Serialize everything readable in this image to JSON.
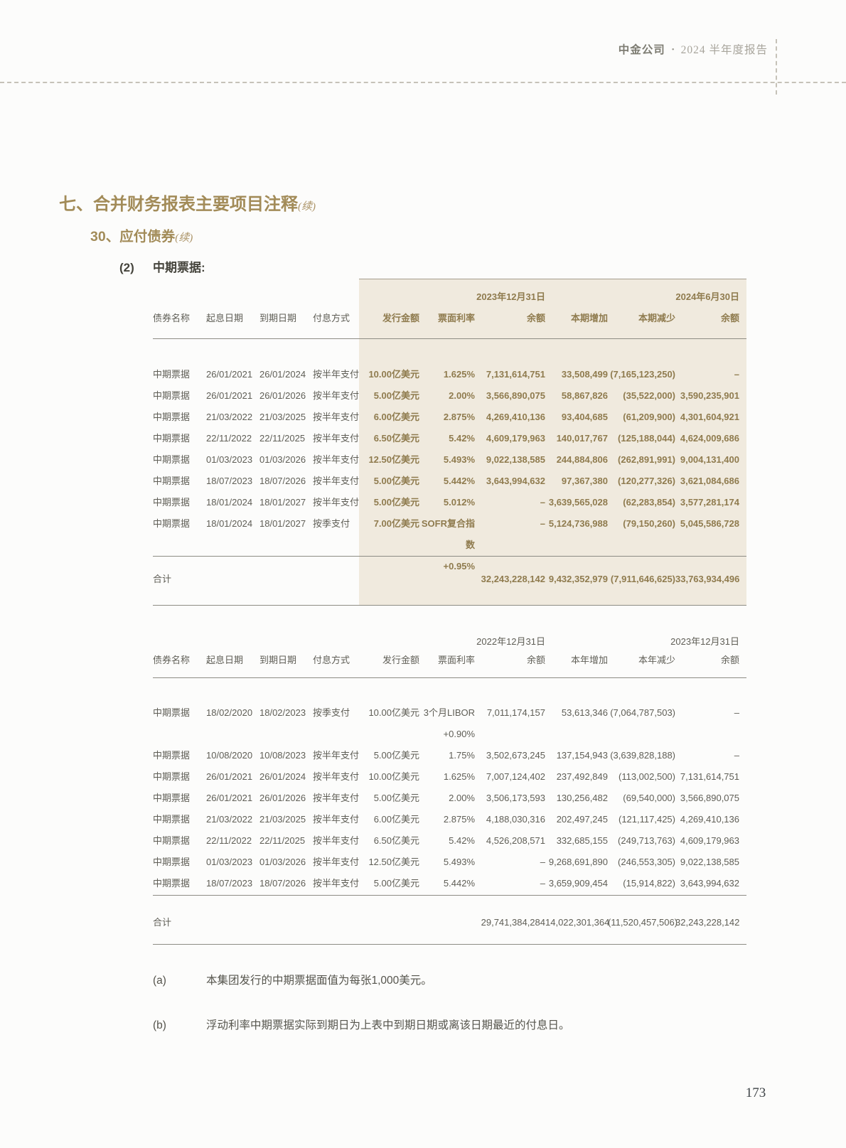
{
  "header": {
    "brand": "中金公司",
    "separator": "•",
    "report": "2024 半年度报告"
  },
  "headings": {
    "section": "七、合并财务报表主要项目注释",
    "section_suffix": "(续)",
    "subsection": "30、应付债券",
    "subsection_suffix": "(续)",
    "item_number": "(2)",
    "item_title": "中期票据:"
  },
  "table1": {
    "period_start_label": "2023年12月31日",
    "period_end_label": "2024年6月30日",
    "columns": [
      "债券名称",
      "起息日期",
      "到期日期",
      "付息方式",
      "发行金额",
      "票面利率",
      "余额",
      "本期增加",
      "本期减少",
      "余额"
    ],
    "rows": [
      [
        "中期票据",
        "26/01/2021",
        "26/01/2024",
        "按半年支付",
        "10.00亿美元",
        "1.625%",
        "7,131,614,751",
        "33,508,499",
        "(7,165,123,250)",
        "–"
      ],
      [
        "中期票据",
        "26/01/2021",
        "26/01/2026",
        "按半年支付",
        "5.00亿美元",
        "2.00%",
        "3,566,890,075",
        "58,867,826",
        "(35,522,000)",
        "3,590,235,901"
      ],
      [
        "中期票据",
        "21/03/2022",
        "21/03/2025",
        "按半年支付",
        "6.00亿美元",
        "2.875%",
        "4,269,410,136",
        "93,404,685",
        "(61,209,900)",
        "4,301,604,921"
      ],
      [
        "中期票据",
        "22/11/2022",
        "22/11/2025",
        "按半年支付",
        "6.50亿美元",
        "5.42%",
        "4,609,179,963",
        "140,017,767",
        "(125,188,044)",
        "4,624,009,686"
      ],
      [
        "中期票据",
        "01/03/2023",
        "01/03/2026",
        "按半年支付",
        "12.50亿美元",
        "5.493%",
        "9,022,138,585",
        "244,884,806",
        "(262,891,991)",
        "9,004,131,400"
      ],
      [
        "中期票据",
        "18/07/2023",
        "18/07/2026",
        "按半年支付",
        "5.00亿美元",
        "5.442%",
        "3,643,994,632",
        "97,367,380",
        "(120,277,326)",
        "3,621,084,686"
      ],
      [
        "中期票据",
        "18/01/2024",
        "18/01/2027",
        "按半年支付",
        "5.00亿美元",
        "5.012%",
        "–",
        "3,639,565,028",
        "(62,283,854)",
        "3,577,281,174"
      ],
      [
        "中期票据",
        "18/01/2024",
        "18/01/2027",
        "按季支付",
        "7.00亿美元",
        "SOFR复合指数\n+0.95%",
        "–",
        "5,124,736,988",
        "(79,150,260)",
        "5,045,586,728"
      ]
    ],
    "total_label": "合计",
    "totals": [
      "32,243,228,142",
      "9,432,352,979",
      "(7,911,646,625)",
      "33,763,934,496"
    ]
  },
  "table2": {
    "period_start_label": "2022年12月31日",
    "period_end_label": "2023年12月31日",
    "columns": [
      "债券名称",
      "起息日期",
      "到期日期",
      "付息方式",
      "发行金额",
      "票面利率",
      "余额",
      "本年增加",
      "本年减少",
      "余额"
    ],
    "rows": [
      [
        "中期票据",
        "18/02/2020",
        "18/02/2023",
        "按季支付",
        "10.00亿美元",
        "3个月LIBOR\n+0.90%",
        "7,011,174,157",
        "53,613,346",
        "(7,064,787,503)",
        "–"
      ],
      [
        "中期票据",
        "10/08/2020",
        "10/08/2023",
        "按半年支付",
        "5.00亿美元",
        "1.75%",
        "3,502,673,245",
        "137,154,943",
        "(3,639,828,188)",
        "–"
      ],
      [
        "中期票据",
        "26/01/2021",
        "26/01/2024",
        "按半年支付",
        "10.00亿美元",
        "1.625%",
        "7,007,124,402",
        "237,492,849",
        "(113,002,500)",
        "7,131,614,751"
      ],
      [
        "中期票据",
        "26/01/2021",
        "26/01/2026",
        "按半年支付",
        "5.00亿美元",
        "2.00%",
        "3,506,173,593",
        "130,256,482",
        "(69,540,000)",
        "3,566,890,075"
      ],
      [
        "中期票据",
        "21/03/2022",
        "21/03/2025",
        "按半年支付",
        "6.00亿美元",
        "2.875%",
        "4,188,030,316",
        "202,497,245",
        "(121,117,425)",
        "4,269,410,136"
      ],
      [
        "中期票据",
        "22/11/2022",
        "22/11/2025",
        "按半年支付",
        "6.50亿美元",
        "5.42%",
        "4,526,208,571",
        "332,685,155",
        "(249,713,763)",
        "4,609,179,963"
      ],
      [
        "中期票据",
        "01/03/2023",
        "01/03/2026",
        "按半年支付",
        "12.50亿美元",
        "5.493%",
        "–",
        "9,268,691,890",
        "(246,553,305)",
        "9,022,138,585"
      ],
      [
        "中期票据",
        "18/07/2023",
        "18/07/2026",
        "按半年支付",
        "5.00亿美元",
        "5.442%",
        "–",
        "3,659,909,454",
        "(15,914,822)",
        "3,643,994,632"
      ]
    ],
    "total_label": "合计",
    "totals": [
      "29,741,384,284",
      "14,022,301,364",
      "(11,520,457,506)",
      "32,243,228,142"
    ]
  },
  "notes": [
    {
      "tag": "(a)",
      "text": "本集团发行的中期票据面值为每张1,000美元。"
    },
    {
      "tag": "(b)",
      "text": "浮动利率中期票据实际到期日为上表中到期日期或离该日期最近的付息日。"
    }
  ],
  "page_number": "173"
}
